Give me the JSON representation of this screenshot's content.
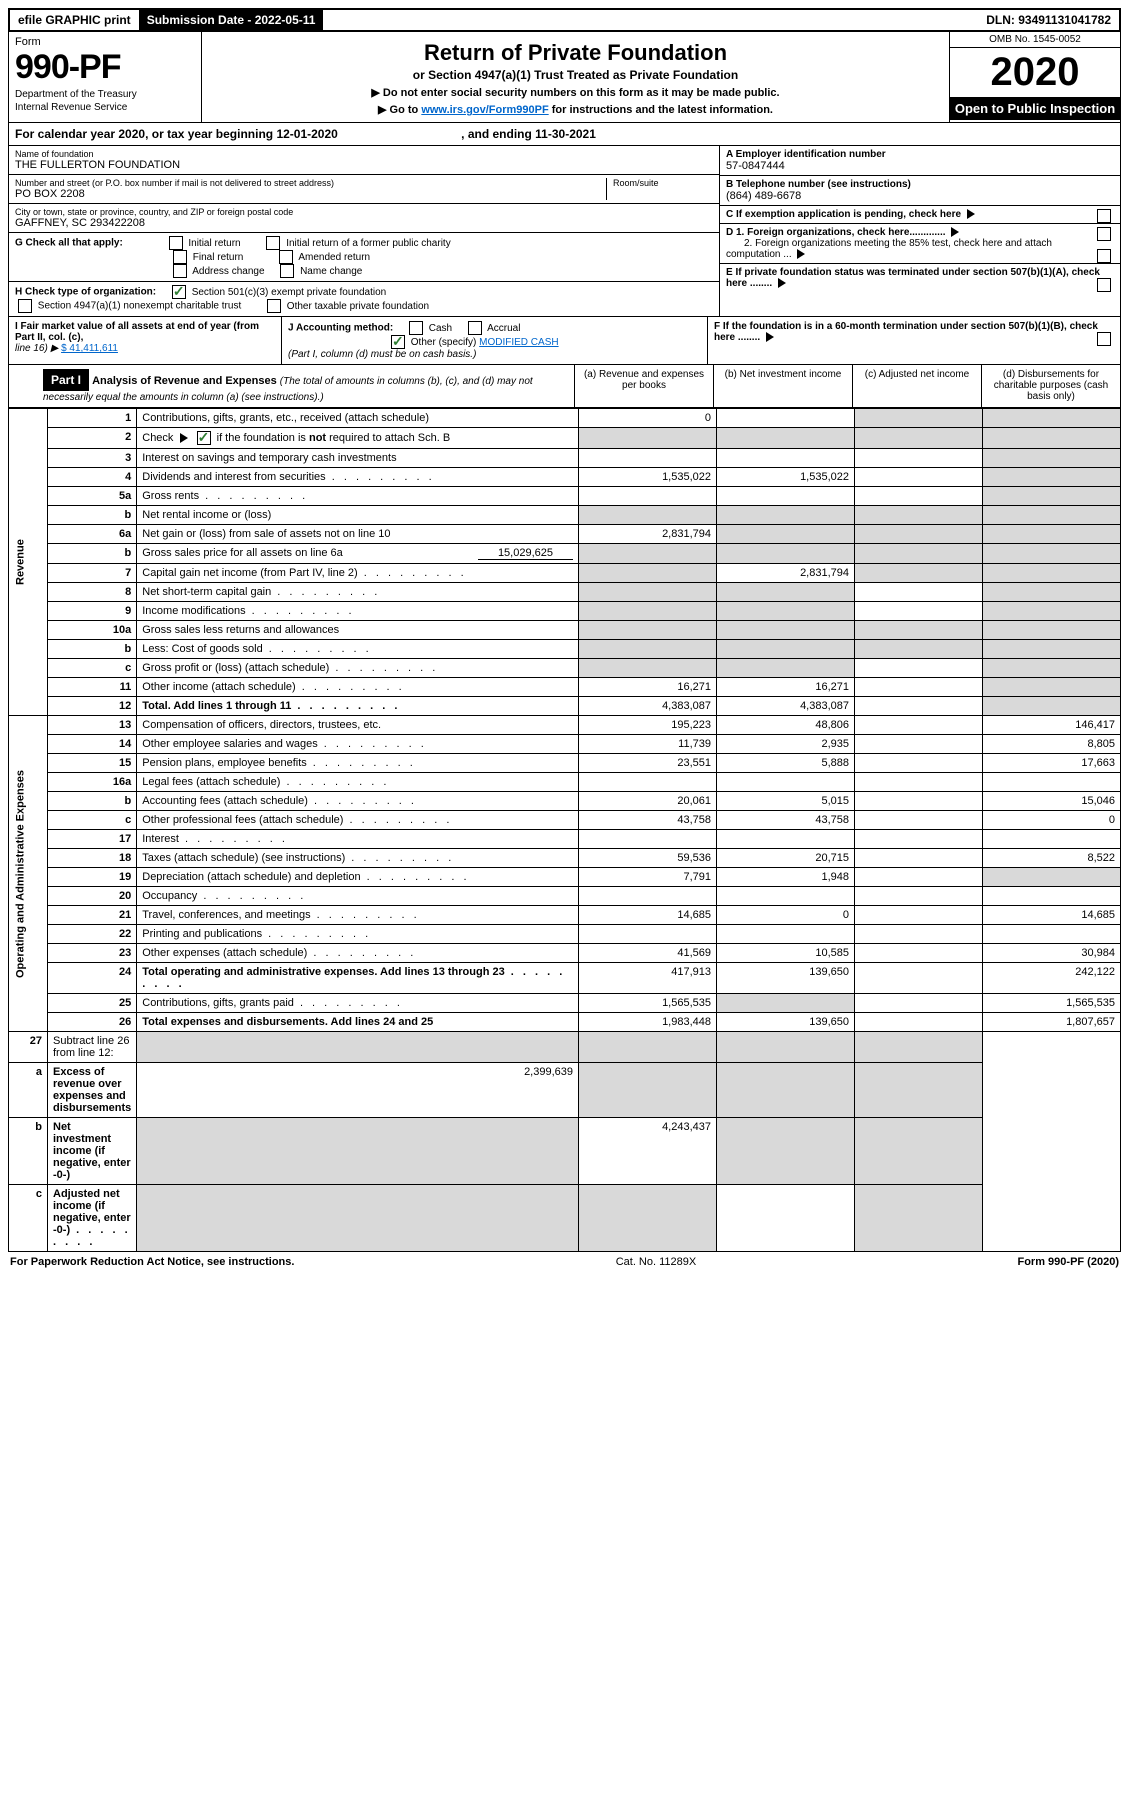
{
  "topbar": {
    "efile": "efile GRAPHIC print",
    "submission": "Submission Date - 2022-05-11",
    "dln": "DLN: 93491131041782"
  },
  "header": {
    "form_label": "Form",
    "form_number": "990-PF",
    "dept": "Department of the Treasury",
    "irs": "Internal Revenue Service",
    "title": "Return of Private Foundation",
    "subtitle": "or Section 4947(a)(1) Trust Treated as Private Foundation",
    "note1": "▶ Do not enter social security numbers on this form as it may be made public.",
    "note2_pre": "▶ Go to ",
    "note2_link": "www.irs.gov/Form990PF",
    "note2_post": " for instructions and the latest information.",
    "omb": "OMB No. 1545-0052",
    "year": "2020",
    "open": "Open to Public Inspection"
  },
  "calyear": {
    "text": "For calendar year 2020, or tax year beginning 12-01-2020",
    "ending": ", and ending 11-30-2021"
  },
  "entity": {
    "name_label": "Name of foundation",
    "name": "THE FULLERTON FOUNDATION",
    "addr_label": "Number and street (or P.O. box number if mail is not delivered to street address)",
    "addr": "PO BOX 2208",
    "room_label": "Room/suite",
    "city_label": "City or town, state or province, country, and ZIP or foreign postal code",
    "city": "GAFFNEY, SC  293422208",
    "ein_label": "A Employer identification number",
    "ein": "57-0847444",
    "phone_label": "B Telephone number (see instructions)",
    "phone": "(864) 489-6678",
    "c_label": "C If exemption application is pending, check here",
    "d1": "D 1. Foreign organizations, check here.............",
    "d2": "2. Foreign organizations meeting the 85% test, check here and attach computation ...",
    "e_label": "E  If private foundation status was terminated under section 507(b)(1)(A), check here ........",
    "f_label": "F  If the foundation is in a 60-month termination under section 507(b)(1)(B), check here ........"
  },
  "g": {
    "label": "G Check all that apply:",
    "opts": [
      "Initial return",
      "Initial return of a former public charity",
      "Final return",
      "Amended return",
      "Address change",
      "Name change"
    ]
  },
  "h": {
    "label": "H Check type of organization:",
    "opt1": "Section 501(c)(3) exempt private foundation",
    "opt2": "Section 4947(a)(1) nonexempt charitable trust",
    "opt3": "Other taxable private foundation"
  },
  "i": {
    "label": "I Fair market value of all assets at end of year (from Part II, col. (c),",
    "line": "line 16) ▶",
    "val": "$  41,411,611"
  },
  "j": {
    "label": "J Accounting method:",
    "cash": "Cash",
    "accrual": "Accrual",
    "other": "Other (specify)",
    "other_val": "MODIFIED CASH",
    "note": "(Part I, column (d) must be on cash basis.)"
  },
  "part1": {
    "label": "Part I",
    "title": "Analysis of Revenue and Expenses",
    "sub": "(The total of amounts in columns (b), (c), and (d) may not necessarily equal the amounts in column (a) (see instructions).)",
    "col_a": "(a)   Revenue and expenses per books",
    "col_b": "(b)   Net investment income",
    "col_c": "(c)   Adjusted net income",
    "col_d": "(d)  Disbursements for charitable purposes (cash basis only)"
  },
  "side": {
    "revenue": "Revenue",
    "expenses": "Operating and Administrative Expenses"
  },
  "rows": [
    {
      "n": "1",
      "d": "Contributions, gifts, grants, etc., received (attach schedule)",
      "a": "0",
      "b": "",
      "c": "shade",
      "dcol": "shade"
    },
    {
      "n": "2",
      "d": "Check ▶ [✓] if the foundation is not required to attach Sch. B",
      "a": "shade",
      "b": "shade",
      "c": "shade",
      "dcol": "shade",
      "check": true,
      "bold_not": true
    },
    {
      "n": "3",
      "d": "Interest on savings and temporary cash investments",
      "a": "",
      "b": "",
      "c": "",
      "dcol": "shade"
    },
    {
      "n": "4",
      "d": "Dividends and interest from securities",
      "a": "1,535,022",
      "b": "1,535,022",
      "c": "",
      "dcol": "shade",
      "dots": true
    },
    {
      "n": "5a",
      "d": "Gross rents",
      "a": "",
      "b": "",
      "c": "",
      "dcol": "shade",
      "dots": true
    },
    {
      "n": "b",
      "d": "Net rental income or (loss)",
      "a": "shade",
      "b": "shade",
      "c": "shade",
      "dcol": "shade",
      "inline": true
    },
    {
      "n": "6a",
      "d": "Net gain or (loss) from sale of assets not on line 10",
      "a": "2,831,794",
      "b": "shade",
      "c": "shade",
      "dcol": "shade"
    },
    {
      "n": "b",
      "d": "Gross sales price for all assets on line 6a",
      "a": "shade",
      "b": "shade",
      "c": "shade",
      "dcol": "shade",
      "inline_val": "15,029,625"
    },
    {
      "n": "7",
      "d": "Capital gain net income (from Part IV, line 2)",
      "a": "shade",
      "b": "2,831,794",
      "c": "shade",
      "dcol": "shade",
      "dots": true
    },
    {
      "n": "8",
      "d": "Net short-term capital gain",
      "a": "shade",
      "b": "shade",
      "c": "",
      "dcol": "shade",
      "dots": true
    },
    {
      "n": "9",
      "d": "Income modifications",
      "a": "shade",
      "b": "shade",
      "c": "",
      "dcol": "shade",
      "dots": true
    },
    {
      "n": "10a",
      "d": "Gross sales less returns and allowances",
      "a": "shade",
      "b": "shade",
      "c": "shade",
      "dcol": "shade",
      "inline": true
    },
    {
      "n": "b",
      "d": "Less: Cost of goods sold",
      "a": "shade",
      "b": "shade",
      "c": "shade",
      "dcol": "shade",
      "inline": true,
      "dots": true
    },
    {
      "n": "c",
      "d": "Gross profit or (loss) (attach schedule)",
      "a": "shade",
      "b": "shade",
      "c": "",
      "dcol": "shade",
      "dots": true
    },
    {
      "n": "11",
      "d": "Other income (attach schedule)",
      "a": "16,271",
      "b": "16,271",
      "c": "",
      "dcol": "shade",
      "dots": true
    },
    {
      "n": "12",
      "d": "Total. Add lines 1 through 11",
      "a": "4,383,087",
      "b": "4,383,087",
      "c": "",
      "dcol": "shade",
      "bold": true,
      "dots": true
    }
  ],
  "exp_rows": [
    {
      "n": "13",
      "d": "Compensation of officers, directors, trustees, etc.",
      "a": "195,223",
      "b": "48,806",
      "c": "",
      "dcol": "146,417"
    },
    {
      "n": "14",
      "d": "Other employee salaries and wages",
      "a": "11,739",
      "b": "2,935",
      "c": "",
      "dcol": "8,805",
      "dots": true
    },
    {
      "n": "15",
      "d": "Pension plans, employee benefits",
      "a": "23,551",
      "b": "5,888",
      "c": "",
      "dcol": "17,663",
      "dots": true
    },
    {
      "n": "16a",
      "d": "Legal fees (attach schedule)",
      "a": "",
      "b": "",
      "c": "",
      "dcol": "",
      "dots": true
    },
    {
      "n": "b",
      "d": "Accounting fees (attach schedule)",
      "a": "20,061",
      "b": "5,015",
      "c": "",
      "dcol": "15,046",
      "dots": true
    },
    {
      "n": "c",
      "d": "Other professional fees (attach schedule)",
      "a": "43,758",
      "b": "43,758",
      "c": "",
      "dcol": "0",
      "dots": true
    },
    {
      "n": "17",
      "d": "Interest",
      "a": "",
      "b": "",
      "c": "",
      "dcol": "",
      "dots": true
    },
    {
      "n": "18",
      "d": "Taxes (attach schedule) (see instructions)",
      "a": "59,536",
      "b": "20,715",
      "c": "",
      "dcol": "8,522",
      "dots": true
    },
    {
      "n": "19",
      "d": "Depreciation (attach schedule) and depletion",
      "a": "7,791",
      "b": "1,948",
      "c": "",
      "dcol": "shade",
      "dots": true
    },
    {
      "n": "20",
      "d": "Occupancy",
      "a": "",
      "b": "",
      "c": "",
      "dcol": "",
      "dots": true
    },
    {
      "n": "21",
      "d": "Travel, conferences, and meetings",
      "a": "14,685",
      "b": "0",
      "c": "",
      "dcol": "14,685",
      "dots": true
    },
    {
      "n": "22",
      "d": "Printing and publications",
      "a": "",
      "b": "",
      "c": "",
      "dcol": "",
      "dots": true
    },
    {
      "n": "23",
      "d": "Other expenses (attach schedule)",
      "a": "41,569",
      "b": "10,585",
      "c": "",
      "dcol": "30,984",
      "dots": true
    },
    {
      "n": "24",
      "d": "Total operating and administrative expenses. Add lines 13 through 23",
      "a": "417,913",
      "b": "139,650",
      "c": "",
      "dcol": "242,122",
      "bold": true,
      "dots": true
    },
    {
      "n": "25",
      "d": "Contributions, gifts, grants paid",
      "a": "1,565,535",
      "b": "shade",
      "c": "",
      "dcol": "1,565,535",
      "dots": true
    },
    {
      "n": "26",
      "d": "Total expenses and disbursements. Add lines 24 and 25",
      "a": "1,983,448",
      "b": "139,650",
      "c": "",
      "dcol": "1,807,657",
      "bold": true
    }
  ],
  "rows27": [
    {
      "n": "27",
      "d": "Subtract line 26 from line 12:",
      "a": "shade",
      "b": "shade",
      "c": "shade",
      "dcol": "shade"
    },
    {
      "n": "a",
      "d": "Excess of revenue over expenses and disbursements",
      "a": "2,399,639",
      "b": "shade",
      "c": "shade",
      "dcol": "shade",
      "bold": true
    },
    {
      "n": "b",
      "d": "Net investment income (if negative, enter -0-)",
      "a": "shade",
      "b": "4,243,437",
      "c": "shade",
      "dcol": "shade",
      "bold": true
    },
    {
      "n": "c",
      "d": "Adjusted net income (if negative, enter -0-)",
      "a": "shade",
      "b": "shade",
      "c": "",
      "dcol": "shade",
      "bold": true,
      "dots": true
    }
  ],
  "footer": {
    "left": "For Paperwork Reduction Act Notice, see instructions.",
    "mid": "Cat. No. 11289X",
    "right": "Form 990-PF (2020)"
  },
  "colors": {
    "link": "#0066cc",
    "check": "#2e7d32",
    "shade": "#d9d9d9"
  }
}
